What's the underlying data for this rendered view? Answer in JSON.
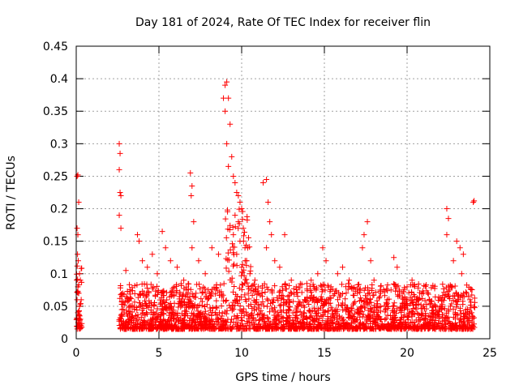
{
  "chart_data": {
    "type": "scatter",
    "title": "Day 181 of 2024, Rate Of TEC Index for receiver flin",
    "xlabel": "GPS time / hours",
    "ylabel": "ROTI / TECUs",
    "xlim": [
      0,
      25
    ],
    "ylim": [
      0,
      0.45
    ],
    "xticks": [
      0,
      5,
      10,
      15,
      20,
      25
    ],
    "yticks": [
      0,
      0.05,
      0.1,
      0.15,
      0.2,
      0.25,
      0.3,
      0.35,
      0.4,
      0.45
    ],
    "xtick_labels": [
      "0",
      "5",
      "10",
      "15",
      "20",
      "25"
    ],
    "ytick_labels": [
      "0",
      "0.05",
      "0.1",
      "0.15",
      "0.2",
      "0.25",
      "0.3",
      "0.35",
      "0.4",
      "0.45"
    ],
    "grid": true,
    "marker": "plus",
    "marker_color": "#ff0000",
    "series": [
      {
        "points": [
          [
            0.05,
            0.25
          ],
          [
            0.1,
            0.252
          ],
          [
            0.15,
            0.21
          ],
          [
            0.05,
            0.17
          ],
          [
            0.1,
            0.16
          ],
          [
            0.08,
            0.13
          ],
          [
            0.12,
            0.12
          ],
          [
            0.2,
            0.1
          ],
          [
            0.25,
            0.09
          ],
          [
            0.1,
            0.08
          ],
          [
            0.15,
            0.07
          ],
          [
            0.05,
            0.06
          ],
          [
            0.2,
            0.05
          ],
          [
            0.1,
            0.04
          ],
          [
            0.25,
            0.03
          ],
          [
            0.15,
            0.02
          ],
          [
            0.3,
            0.02
          ],
          [
            0.05,
            0.03
          ],
          [
            0.2,
            0.035
          ],
          [
            0.3,
            0.06
          ],
          [
            2.6,
            0.3
          ],
          [
            2.65,
            0.285
          ],
          [
            2.6,
            0.26
          ],
          [
            2.65,
            0.225
          ],
          [
            2.7,
            0.22
          ],
          [
            2.6,
            0.19
          ],
          [
            2.7,
            0.17
          ],
          [
            3.0,
            0.105
          ],
          [
            2.8,
            0.07
          ],
          [
            3.2,
            0.06
          ],
          [
            2.9,
            0.04
          ],
          [
            3.3,
            0.03
          ],
          [
            3.7,
            0.16
          ],
          [
            3.8,
            0.15
          ],
          [
            4.0,
            0.12
          ],
          [
            4.3,
            0.11
          ],
          [
            4.6,
            0.13
          ],
          [
            4.9,
            0.1
          ],
          [
            5.2,
            0.165
          ],
          [
            5.4,
            0.14
          ],
          [
            5.7,
            0.12
          ],
          [
            6.1,
            0.11
          ],
          [
            6.5,
            0.09
          ],
          [
            6.9,
            0.255
          ],
          [
            7.0,
            0.235
          ],
          [
            6.95,
            0.22
          ],
          [
            7.1,
            0.18
          ],
          [
            7.0,
            0.14
          ],
          [
            7.4,
            0.12
          ],
          [
            7.8,
            0.1
          ],
          [
            8.2,
            0.14
          ],
          [
            8.6,
            0.13
          ],
          [
            8.9,
            0.37
          ],
          [
            9.0,
            0.39
          ],
          [
            9.1,
            0.395
          ],
          [
            9.2,
            0.37
          ],
          [
            9.0,
            0.35
          ],
          [
            9.3,
            0.33
          ],
          [
            9.1,
            0.3
          ],
          [
            9.4,
            0.28
          ],
          [
            9.2,
            0.265
          ],
          [
            9.5,
            0.25
          ],
          [
            9.6,
            0.24
          ],
          [
            9.7,
            0.225
          ],
          [
            9.8,
            0.22
          ],
          [
            9.9,
            0.21
          ],
          [
            10.0,
            0.2
          ],
          [
            9.6,
            0.19
          ],
          [
            9.8,
            0.18
          ],
          [
            10.1,
            0.17
          ],
          [
            9.5,
            0.16
          ],
          [
            9.9,
            0.15
          ],
          [
            10.2,
            0.14
          ],
          [
            9.7,
            0.13
          ],
          [
            10.3,
            0.12
          ],
          [
            10.0,
            0.11
          ],
          [
            10.5,
            0.1
          ],
          [
            10.8,
            0.09
          ],
          [
            11.0,
            0.08
          ],
          [
            10.4,
            0.07
          ],
          [
            10.9,
            0.06
          ],
          [
            11.3,
            0.24
          ],
          [
            11.5,
            0.245
          ],
          [
            11.6,
            0.21
          ],
          [
            11.7,
            0.18
          ],
          [
            11.8,
            0.16
          ],
          [
            11.5,
            0.14
          ],
          [
            12.0,
            0.12
          ],
          [
            12.3,
            0.11
          ],
          [
            12.6,
            0.16
          ],
          [
            13.0,
            0.09
          ],
          [
            13.3,
            0.08
          ],
          [
            13.8,
            0.06
          ],
          [
            14.2,
            0.09
          ],
          [
            14.6,
            0.1
          ],
          [
            14.9,
            0.14
          ],
          [
            15.1,
            0.12
          ],
          [
            15.4,
            0.08
          ],
          [
            15.8,
            0.1
          ],
          [
            16.1,
            0.11
          ],
          [
            16.5,
            0.09
          ],
          [
            17.0,
            0.07
          ],
          [
            17.4,
            0.16
          ],
          [
            17.6,
            0.18
          ],
          [
            17.3,
            0.14
          ],
          [
            17.8,
            0.12
          ],
          [
            18.0,
            0.09
          ],
          [
            18.4,
            0.07
          ],
          [
            18.8,
            0.06
          ],
          [
            19.2,
            0.125
          ],
          [
            19.4,
            0.11
          ],
          [
            19.7,
            0.07
          ],
          [
            20.0,
            0.08
          ],
          [
            20.3,
            0.09
          ],
          [
            20.6,
            0.06
          ],
          [
            21.0,
            0.05
          ],
          [
            21.5,
            0.04
          ],
          [
            22.0,
            0.05
          ],
          [
            22.4,
            0.2
          ],
          [
            22.5,
            0.185
          ],
          [
            22.4,
            0.16
          ],
          [
            22.8,
            0.12
          ],
          [
            23.0,
            0.15
          ],
          [
            23.2,
            0.14
          ],
          [
            23.4,
            0.13
          ],
          [
            23.3,
            0.1
          ],
          [
            23.6,
            0.07
          ],
          [
            23.8,
            0.06
          ],
          [
            24.0,
            0.21
          ],
          [
            24.05,
            0.212
          ],
          [
            23.9,
            0.04
          ]
        ]
      }
    ]
  }
}
